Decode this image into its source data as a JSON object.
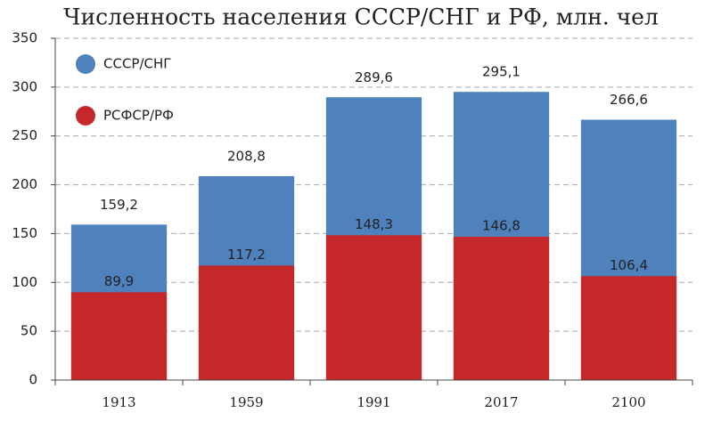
{
  "chart_data": {
    "type": "overlap-bar",
    "title": "Численность населения СССР/СНГ и РФ, млн. чел",
    "categories": [
      "1913",
      "1959",
      "1991",
      "2017",
      "2100"
    ],
    "series": [
      {
        "name": "СССР/СНГ",
        "color": "#4f81bd",
        "values": [
          159.2,
          208.8,
          289.6,
          295.1,
          266.6
        ],
        "value_labels": [
          "159,2",
          "208,8",
          "289,6",
          "295,1",
          "266,6"
        ]
      },
      {
        "name": "РСФСР/РФ",
        "color": "#c4282a",
        "values": [
          89.9,
          117.2,
          148.3,
          146.8,
          106.4
        ],
        "value_labels": [
          "89,9",
          "117,2",
          "148,3",
          "146,8",
          "106,4"
        ]
      }
    ],
    "ylim": [
      0,
      350
    ],
    "yticks": [
      0,
      50,
      100,
      150,
      200,
      250,
      300,
      350
    ],
    "grid": true,
    "legend": "top-left"
  }
}
